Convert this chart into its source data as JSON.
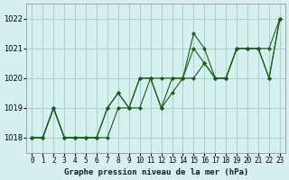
{
  "title": "Graphe pression niveau de la mer (hPa)",
  "bg_color": "#d6f0f0",
  "grid_color": "#b0d0d0",
  "line_color": "#1a5c1a",
  "marker_color": "#1a5c1a",
  "xlim": [
    -0.5,
    23.5
  ],
  "ylim": [
    1017.5,
    1022.5
  ],
  "yticks": [
    1018,
    1019,
    1020,
    1021,
    1022
  ],
  "xtick_labels": [
    "0",
    "1",
    "2",
    "3",
    "4",
    "5",
    "6",
    "7",
    "8",
    "9",
    "10",
    "11",
    "12",
    "13",
    "14",
    "15",
    "16",
    "17",
    "18",
    "19",
    "20",
    "21",
    "22",
    "23"
  ],
  "series": [
    [
      1018.0,
      1018.0,
      1019.0,
      1018.0,
      1018.0,
      1018.0,
      1018.0,
      1019.0,
      1019.5,
      1019.0,
      1020.0,
      1020.0,
      1019.0,
      1020.0,
      1020.0,
      1021.0,
      1020.5,
      1020.0,
      1020.0,
      1021.0,
      1021.0,
      1021.0,
      1020.0,
      1022.0
    ],
    [
      1018.0,
      1018.0,
      1019.0,
      1018.0,
      1018.0,
      1018.0,
      1018.0,
      1018.0,
      1019.0,
      1019.0,
      1019.0,
      1020.0,
      1020.0,
      1020.0,
      1020.0,
      1020.0,
      1020.5,
      1020.0,
      1020.0,
      1021.0,
      1021.0,
      1021.0,
      1021.0,
      1022.0
    ],
    [
      1018.0,
      1018.0,
      1019.0,
      1018.0,
      1018.0,
      1018.0,
      1018.0,
      1019.0,
      1019.5,
      1019.0,
      1020.0,
      1020.0,
      1019.0,
      1019.5,
      1020.0,
      1021.5,
      1021.0,
      1020.0,
      1020.0,
      1021.0,
      1021.0,
      1021.0,
      1020.0,
      1022.0
    ]
  ]
}
